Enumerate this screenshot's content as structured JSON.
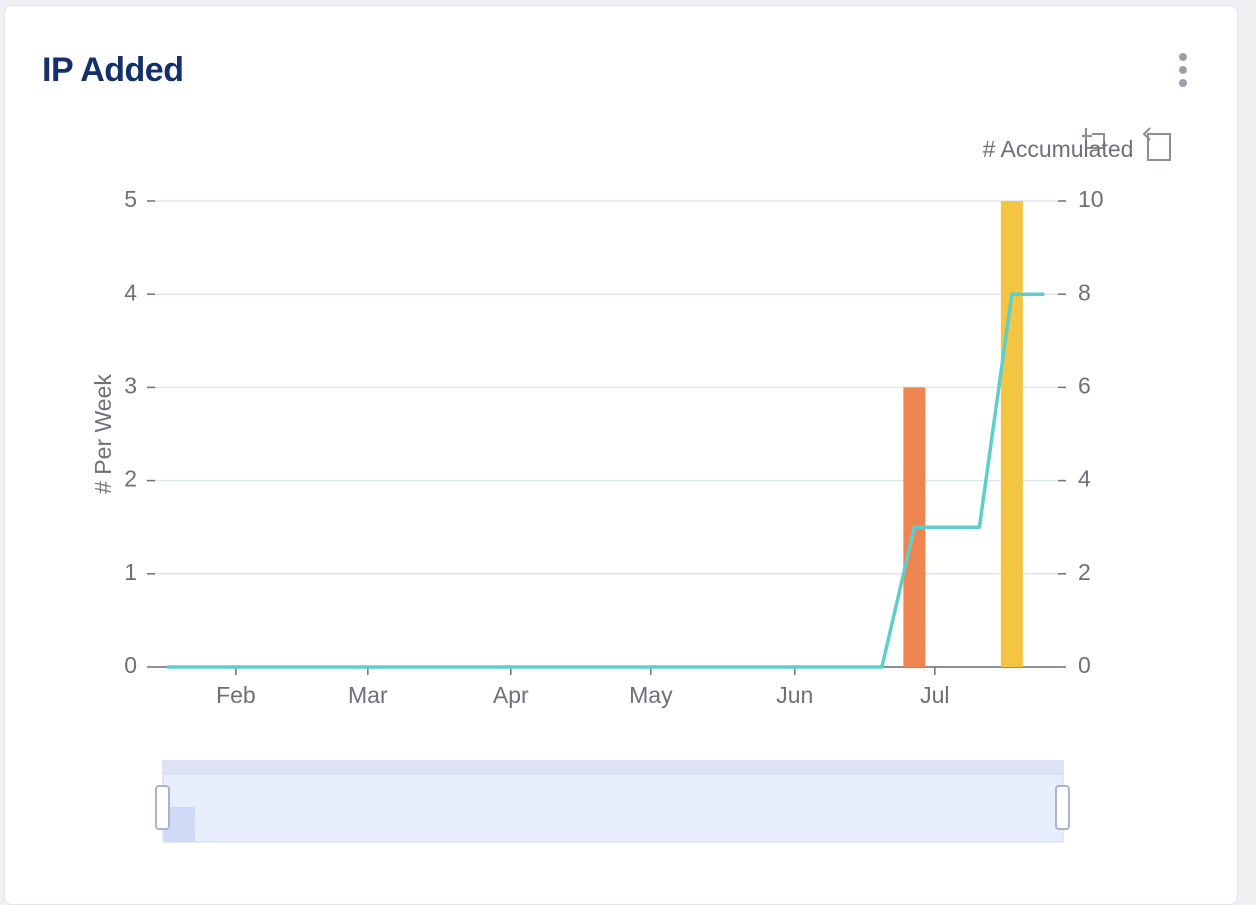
{
  "title": "IP Added",
  "chart_data": {
    "type": "combo",
    "ylabel": "# Per Week",
    "y2label": "# Accumulated",
    "x": [
      0,
      1,
      2,
      3,
      4,
      5,
      6,
      7,
      8,
      9,
      10,
      11,
      12,
      13,
      14,
      15,
      16,
      17,
      18,
      19,
      20,
      21,
      22,
      23,
      24,
      25,
      26,
      27
    ],
    "xlim": [
      -0.37,
      27.42
    ],
    "xticks": [
      {
        "value": 2.12,
        "label": "Feb"
      },
      {
        "value": 6.18,
        "label": "Mar"
      },
      {
        "value": 10.58,
        "label": "Apr"
      },
      {
        "value": 14.89,
        "label": "May"
      },
      {
        "value": 19.32,
        "label": "Jun"
      },
      {
        "value": 23.63,
        "label": "Jul"
      }
    ],
    "bar_values": [
      0,
      0,
      0,
      0,
      0,
      0,
      0,
      0,
      0,
      0,
      0,
      0,
      0,
      0,
      0,
      0,
      0,
      0,
      0,
      0,
      0,
      0,
      0,
      3,
      0,
      0,
      5,
      0
    ],
    "bar_colors": [
      "#ee8450",
      "#ee8450",
      "#ee8450",
      "#ee8450",
      "#ee8450",
      "#ee8450",
      "#ee8450",
      "#ee8450",
      "#ee8450",
      "#ee8450",
      "#ee8450",
      "#ee8450",
      "#ee8450",
      "#ee8450",
      "#ee8450",
      "#ee8450",
      "#ee8450",
      "#ee8450",
      "#ee8450",
      "#ee8450",
      "#ee8450",
      "#ee8450",
      "#ee8450",
      "#ee8450",
      "#f4c542",
      "#f4c542",
      "#f4c542",
      "#f4c542"
    ],
    "line_values": [
      0,
      0,
      0,
      0,
      0,
      0,
      0,
      0,
      0,
      0,
      0,
      0,
      0,
      0,
      0,
      0,
      0,
      0,
      0,
      0,
      0,
      0,
      0,
      3,
      3,
      3,
      8,
      8
    ],
    "line_color": "#5ccfcc",
    "ylim": [
      0,
      5
    ],
    "yticks": [
      0,
      1,
      2,
      3,
      4,
      5
    ],
    "y2lim": [
      0,
      10
    ],
    "y2ticks": [
      0,
      2,
      4,
      6,
      8,
      10
    ],
    "grid": true
  }
}
